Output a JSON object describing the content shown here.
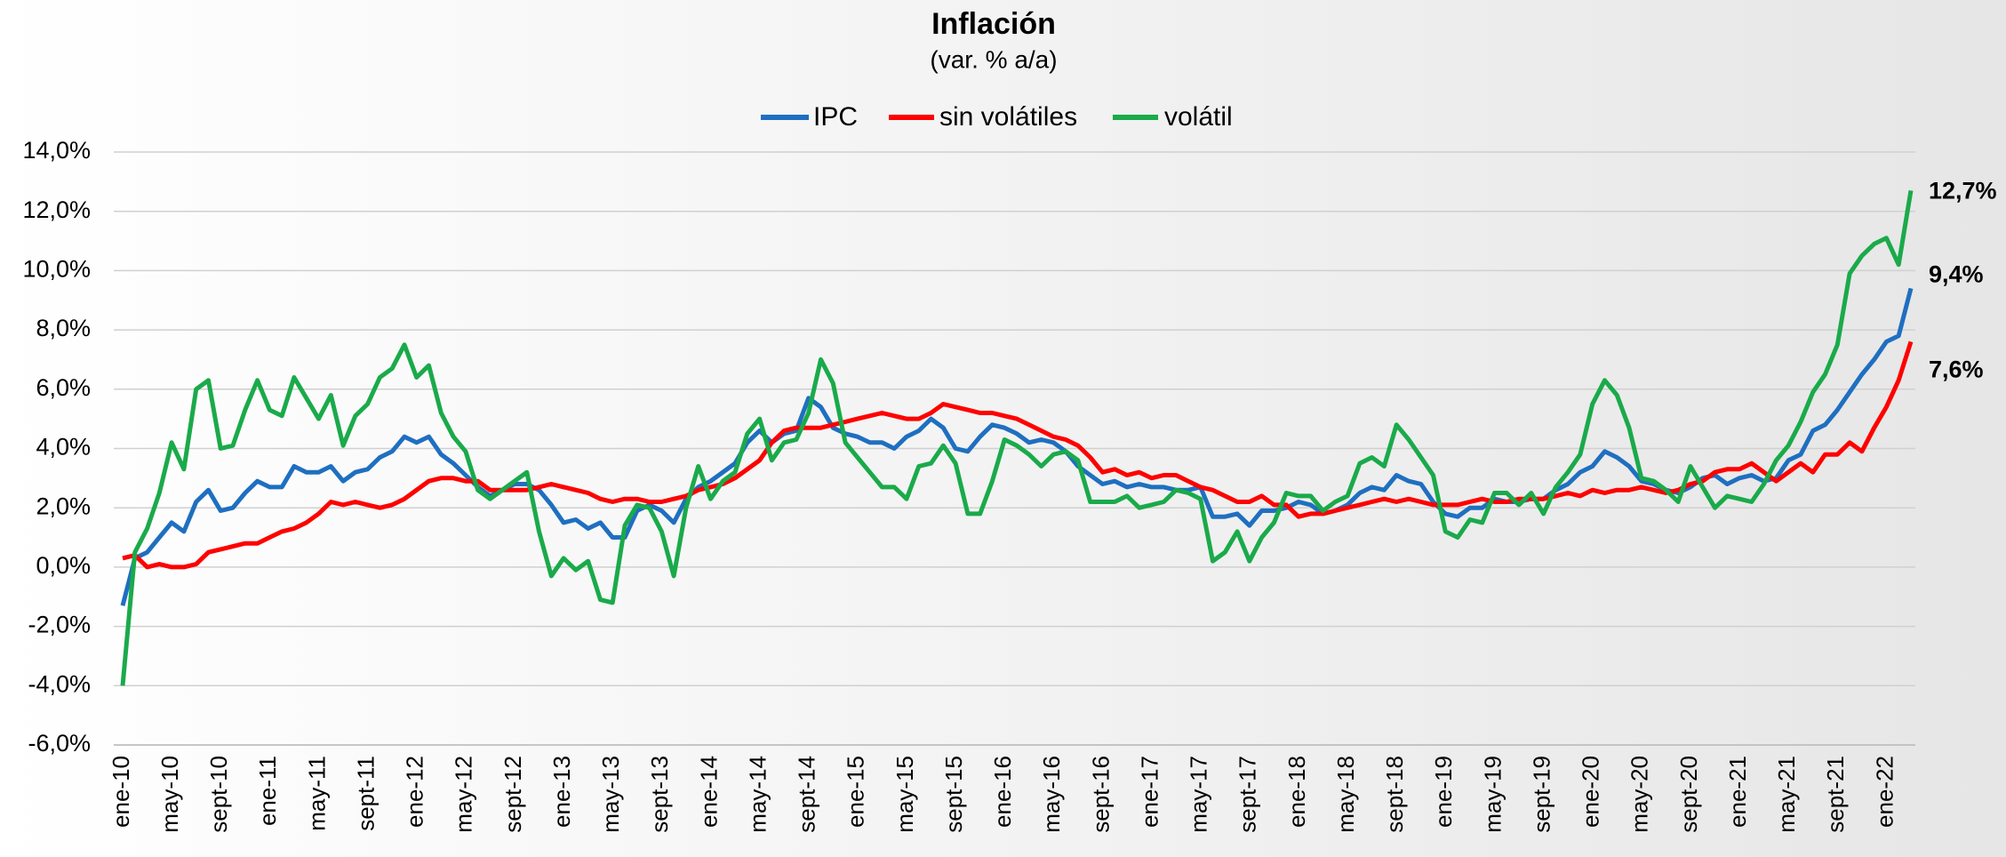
{
  "chart_data": {
    "type": "line",
    "title": "Inflación",
    "subtitle": "(var. % a/a)",
    "categories": [
      "ene-10",
      null,
      null,
      null,
      "may-10",
      null,
      null,
      null,
      "sept-10",
      null,
      null,
      null,
      "ene-11",
      null,
      null,
      null,
      "may-11",
      null,
      null,
      null,
      "sept-11",
      null,
      null,
      null,
      "ene-12",
      null,
      null,
      null,
      "may-12",
      null,
      null,
      null,
      "sept-12",
      null,
      null,
      null,
      "ene-13",
      null,
      null,
      null,
      "may-13",
      null,
      null,
      null,
      "sept-13",
      null,
      null,
      null,
      "ene-14",
      null,
      null,
      null,
      "may-14",
      null,
      null,
      null,
      "sept-14",
      null,
      null,
      null,
      "ene-15",
      null,
      null,
      null,
      "may-15",
      null,
      null,
      null,
      "sept-15",
      null,
      null,
      null,
      "ene-16",
      null,
      null,
      null,
      "may-16",
      null,
      null,
      null,
      "sept-16",
      null,
      null,
      null,
      "ene-17",
      null,
      null,
      null,
      "may-17",
      null,
      null,
      null,
      "sept-17",
      null,
      null,
      null,
      "ene-18",
      null,
      null,
      null,
      "may-18",
      null,
      null,
      null,
      "sept-18",
      null,
      null,
      null,
      "ene-19",
      null,
      null,
      null,
      "may-19",
      null,
      null,
      null,
      "sept-19",
      null,
      null,
      null,
      "ene-20",
      null,
      null,
      null,
      "may-20",
      null,
      null,
      null,
      "sept-20",
      null,
      null,
      null,
      "ene-21",
      null,
      null,
      null,
      "may-21",
      null,
      null,
      null,
      "sept-21",
      null,
      null,
      null,
      "ene-22",
      null,
      null
    ],
    "series": [
      {
        "name": "IPC",
        "color": "#1f6fc0",
        "values": [
          -1.3,
          0.3,
          0.5,
          1.0,
          1.5,
          1.2,
          2.2,
          2.6,
          1.9,
          2.0,
          2.5,
          2.9,
          2.7,
          2.7,
          3.4,
          3.2,
          3.2,
          3.4,
          2.9,
          3.2,
          3.3,
          3.7,
          3.9,
          4.4,
          4.2,
          4.4,
          3.8,
          3.5,
          3.1,
          2.7,
          2.4,
          2.6,
          2.8,
          2.8,
          2.6,
          2.1,
          1.5,
          1.6,
          1.3,
          1.5,
          1.0,
          1.0,
          1.9,
          2.1,
          1.9,
          1.5,
          2.3,
          2.7,
          2.9,
          3.2,
          3.5,
          4.2,
          4.6,
          4.2,
          4.5,
          4.6,
          5.7,
          5.4,
          4.7,
          4.5,
          4.4,
          4.2,
          4.2,
          4.0,
          4.4,
          4.6,
          5.0,
          4.7,
          4.0,
          3.9,
          4.4,
          4.8,
          4.7,
          4.5,
          4.2,
          4.3,
          4.2,
          3.9,
          3.4,
          3.1,
          2.8,
          2.9,
          2.7,
          2.8,
          2.7,
          2.7,
          2.6,
          2.6,
          2.7,
          1.7,
          1.7,
          1.8,
          1.4,
          1.9,
          1.9,
          2.0,
          2.2,
          2.1,
          1.8,
          1.9,
          2.1,
          2.5,
          2.7,
          2.6,
          3.1,
          2.9,
          2.8,
          2.2,
          1.8,
          1.7,
          2.0,
          2.0,
          2.3,
          2.2,
          2.2,
          2.3,
          2.3,
          2.6,
          2.8,
          3.2,
          3.4,
          3.9,
          3.7,
          3.4,
          2.9,
          2.8,
          2.6,
          2.5,
          2.7,
          3.0,
          3.1,
          2.8,
          3.0,
          3.1,
          2.9,
          3.0,
          3.6,
          3.8,
          4.6,
          4.8,
          5.3,
          5.9,
          6.5,
          7.0,
          7.6,
          7.8,
          9.4
        ],
        "value_labels": [
          null,
          null,
          null,
          null,
          null,
          null,
          null,
          null,
          null,
          null,
          null,
          null,
          null,
          null,
          null,
          null,
          null,
          null,
          null,
          null,
          null,
          null,
          null,
          null,
          null,
          null,
          null,
          null,
          null,
          null,
          null,
          null,
          null,
          null,
          null,
          null,
          null,
          null,
          null,
          null,
          null,
          null,
          null,
          null,
          null,
          null,
          null,
          null,
          null,
          null,
          null,
          null,
          null,
          null,
          null,
          null,
          null,
          null,
          null,
          null,
          null,
          null,
          null,
          null,
          null,
          null,
          null,
          null,
          null,
          null,
          null,
          null,
          null,
          null,
          null,
          null,
          null,
          null,
          null,
          null,
          null,
          null,
          null,
          null,
          null,
          null,
          null,
          null,
          null,
          null,
          null,
          null,
          null,
          null,
          null,
          null,
          null,
          null,
          null,
          null,
          null,
          null,
          null,
          null,
          null,
          null,
          null,
          null,
          null,
          null,
          null,
          null,
          null,
          null,
          null,
          null,
          null,
          null,
          null,
          null,
          null,
          null,
          null,
          null,
          null,
          null,
          null,
          null,
          null,
          null,
          null,
          null,
          null,
          null,
          null,
          null,
          null,
          null,
          null,
          null,
          null,
          null,
          null,
          null,
          null,
          null,
          "9,4%"
        ]
      },
      {
        "name": "sin volátiles",
        "color": "#ff0000",
        "values": [
          0.3,
          0.4,
          0.0,
          0.1,
          0.0,
          0.0,
          0.1,
          0.5,
          0.6,
          0.7,
          0.8,
          0.8,
          1.0,
          1.2,
          1.3,
          1.5,
          1.8,
          2.2,
          2.1,
          2.2,
          2.1,
          2.0,
          2.1,
          2.3,
          2.6,
          2.9,
          3.0,
          3.0,
          2.9,
          2.9,
          2.6,
          2.6,
          2.6,
          2.6,
          2.7,
          2.8,
          2.7,
          2.6,
          2.5,
          2.3,
          2.2,
          2.3,
          2.3,
          2.2,
          2.2,
          2.3,
          2.4,
          2.6,
          2.7,
          2.8,
          3.0,
          3.3,
          3.6,
          4.2,
          4.6,
          4.7,
          4.7,
          4.7,
          4.8,
          4.9,
          5.0,
          5.1,
          5.2,
          5.1,
          5.0,
          5.0,
          5.2,
          5.5,
          5.4,
          5.3,
          5.2,
          5.2,
          5.1,
          5.0,
          4.8,
          4.6,
          4.4,
          4.3,
          4.1,
          3.7,
          3.2,
          3.3,
          3.1,
          3.2,
          3.0,
          3.1,
          3.1,
          2.9,
          2.7,
          2.6,
          2.4,
          2.2,
          2.2,
          2.4,
          2.1,
          2.1,
          1.7,
          1.8,
          1.8,
          1.9,
          2.0,
          2.1,
          2.2,
          2.3,
          2.2,
          2.3,
          2.2,
          2.1,
          2.1,
          2.1,
          2.2,
          2.3,
          2.2,
          2.2,
          2.3,
          2.3,
          2.3,
          2.4,
          2.5,
          2.4,
          2.6,
          2.5,
          2.6,
          2.6,
          2.7,
          2.6,
          2.5,
          2.6,
          2.8,
          2.9,
          3.2,
          3.3,
          3.3,
          3.5,
          3.2,
          2.9,
          3.2,
          3.5,
          3.2,
          3.8,
          3.8,
          4.2,
          3.9,
          4.7,
          5.4,
          6.3,
          7.6
        ],
        "value_labels": [
          null,
          null,
          null,
          null,
          null,
          null,
          null,
          null,
          null,
          null,
          null,
          null,
          null,
          null,
          null,
          null,
          null,
          null,
          null,
          null,
          null,
          null,
          null,
          null,
          null,
          null,
          null,
          null,
          null,
          null,
          null,
          null,
          null,
          null,
          null,
          null,
          null,
          null,
          null,
          null,
          null,
          null,
          null,
          null,
          null,
          null,
          null,
          null,
          null,
          null,
          null,
          null,
          null,
          null,
          null,
          null,
          null,
          null,
          null,
          null,
          null,
          null,
          null,
          null,
          null,
          null,
          null,
          null,
          null,
          null,
          null,
          null,
          null,
          null,
          null,
          null,
          null,
          null,
          null,
          null,
          null,
          null,
          null,
          null,
          null,
          null,
          null,
          null,
          null,
          null,
          null,
          null,
          null,
          null,
          null,
          null,
          null,
          null,
          null,
          null,
          null,
          null,
          null,
          null,
          null,
          null,
          null,
          null,
          null,
          null,
          null,
          null,
          null,
          null,
          null,
          null,
          null,
          null,
          null,
          null,
          null,
          null,
          null,
          null,
          null,
          null,
          null,
          null,
          null,
          null,
          null,
          null,
          null,
          null,
          null,
          null,
          null,
          null,
          null,
          null,
          null,
          null,
          null,
          null,
          null,
          null,
          "7,6%"
        ]
      },
      {
        "name": "volátil",
        "color": "#1aaa4a",
        "values": [
          -4.0,
          0.5,
          1.3,
          2.5,
          4.2,
          3.3,
          6.0,
          6.3,
          4.0,
          4.1,
          5.3,
          6.3,
          5.3,
          5.1,
          6.4,
          5.7,
          5.0,
          5.8,
          4.1,
          5.1,
          5.5,
          6.4,
          6.7,
          7.5,
          6.4,
          6.8,
          5.2,
          4.4,
          3.9,
          2.6,
          2.3,
          2.6,
          2.9,
          3.2,
          1.2,
          -0.3,
          0.3,
          -0.1,
          0.2,
          -1.1,
          -1.2,
          1.4,
          2.1,
          2.0,
          1.2,
          -0.3,
          2.0,
          3.4,
          2.3,
          2.9,
          3.2,
          4.5,
          5.0,
          3.6,
          4.2,
          4.3,
          5.2,
          7.0,
          6.2,
          4.2,
          3.7,
          3.2,
          2.7,
          2.7,
          2.3,
          3.4,
          3.5,
          4.1,
          3.5,
          1.8,
          1.8,
          2.9,
          4.3,
          4.1,
          3.8,
          3.4,
          3.8,
          3.9,
          3.6,
          2.2,
          2.2,
          2.2,
          2.4,
          2.0,
          2.1,
          2.2,
          2.6,
          2.5,
          2.3,
          0.2,
          0.5,
          1.2,
          0.2,
          1.0,
          1.5,
          2.5,
          2.4,
          2.4,
          1.9,
          2.2,
          2.4,
          3.5,
          3.7,
          3.4,
          4.8,
          4.3,
          3.7,
          3.1,
          1.2,
          1.0,
          1.6,
          1.5,
          2.5,
          2.5,
          2.1,
          2.5,
          1.8,
          2.7,
          3.2,
          3.8,
          5.5,
          6.3,
          5.8,
          4.7,
          3.0,
          2.9,
          2.6,
          2.2,
          3.4,
          2.7,
          2.0,
          2.4,
          2.3,
          2.2,
          2.8,
          3.6,
          4.1,
          4.9,
          5.9,
          6.5,
          7.5,
          9.9,
          10.5,
          10.9,
          11.1,
          10.2,
          12.7
        ],
        "value_labels": [
          null,
          null,
          null,
          null,
          null,
          null,
          null,
          null,
          null,
          null,
          null,
          null,
          null,
          null,
          null,
          null,
          null,
          null,
          null,
          null,
          null,
          null,
          null,
          null,
          null,
          null,
          null,
          null,
          null,
          null,
          null,
          null,
          null,
          null,
          null,
          null,
          null,
          null,
          null,
          null,
          null,
          null,
          null,
          null,
          null,
          null,
          null,
          null,
          null,
          null,
          null,
          null,
          null,
          null,
          null,
          null,
          null,
          null,
          null,
          null,
          null,
          null,
          null,
          null,
          null,
          null,
          null,
          null,
          null,
          null,
          null,
          null,
          null,
          null,
          null,
          null,
          null,
          null,
          null,
          null,
          null,
          null,
          null,
          null,
          null,
          null,
          null,
          null,
          null,
          null,
          null,
          null,
          null,
          null,
          null,
          null,
          null,
          null,
          null,
          null,
          null,
          null,
          null,
          null,
          null,
          null,
          null,
          null,
          null,
          null,
          null,
          null,
          null,
          null,
          null,
          null,
          null,
          null,
          null,
          null,
          null,
          null,
          null,
          null,
          null,
          null,
          null,
          null,
          null,
          null,
          null,
          null,
          null,
          null,
          null,
          null,
          null,
          null,
          null,
          null,
          null,
          null,
          null,
          null,
          null,
          null,
          "12,7%"
        ]
      }
    ],
    "ylim": [
      -6,
      14
    ],
    "yticks": [
      {
        "value": -6,
        "label": "-6,0%"
      },
      {
        "value": -4,
        "label": "-4,0%"
      },
      {
        "value": -2,
        "label": "-2,0%"
      },
      {
        "value": 0,
        "label": "0,0%"
      },
      {
        "value": 2,
        "label": "2,0%"
      },
      {
        "value": 4,
        "label": "4,0%"
      },
      {
        "value": 6,
        "label": "6,0%"
      },
      {
        "value": 8,
        "label": "8,0%"
      },
      {
        "value": 10,
        "label": "10,0%"
      },
      {
        "value": 12,
        "label": "12,0%"
      },
      {
        "value": 14,
        "label": "14,0%"
      }
    ],
    "grid": true,
    "legend": "top"
  }
}
